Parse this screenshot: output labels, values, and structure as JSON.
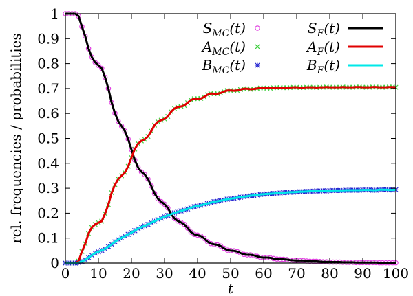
{
  "chart_data": {
    "type": "line",
    "xlabel": "t",
    "ylabel": "rel. frequencies / probabilities",
    "xlim": [
      0,
      100
    ],
    "ylim": [
      0,
      1
    ],
    "xticks": [
      "0",
      "10",
      "20",
      "30",
      "40",
      "50",
      "60",
      "70",
      "80",
      "90",
      "100"
    ],
    "yticks": [
      "0",
      "0.1",
      "0.2",
      "0.3",
      "0.4",
      "0.5",
      "0.6",
      "0.7",
      "0.8",
      "0.9",
      "1"
    ],
    "legend_position": "top-right",
    "x": [
      0,
      1,
      2,
      3,
      4,
      5,
      6,
      7,
      8,
      9,
      10,
      11,
      12,
      13,
      14,
      15,
      16,
      17,
      18,
      19,
      20,
      21,
      22,
      23,
      24,
      25,
      26,
      27,
      28,
      29,
      30,
      31,
      32,
      33,
      34,
      35,
      36,
      37,
      38,
      39,
      40,
      41,
      42,
      43,
      44,
      45,
      46,
      47,
      48,
      49,
      50,
      51,
      52,
      53,
      54,
      55,
      56,
      57,
      58,
      59,
      60,
      61,
      62,
      63,
      64,
      65,
      66,
      67,
      68,
      69,
      70,
      71,
      72,
      73,
      74,
      75,
      76,
      77,
      78,
      79,
      80,
      81,
      82,
      83,
      84,
      85,
      86,
      87,
      88,
      89,
      90,
      91,
      92,
      93,
      94,
      95,
      96,
      97,
      98,
      99,
      100
    ],
    "series": [
      {
        "name": "S_MC(t)",
        "display": [
          "S",
          "MC",
          "(t)"
        ],
        "kind": "markers",
        "marker": "circle",
        "color": "#e040e0",
        "values": [
          1.0,
          1.0,
          1.0,
          1.0,
          0.99,
          0.948,
          0.91,
          0.86,
          0.826,
          0.805,
          0.793,
          0.781,
          0.745,
          0.7,
          0.643,
          0.601,
          0.569,
          0.549,
          0.529,
          0.497,
          0.455,
          0.413,
          0.383,
          0.366,
          0.355,
          0.337,
          0.309,
          0.279,
          0.258,
          0.246,
          0.236,
          0.221,
          0.197,
          0.179,
          0.169,
          0.163,
          0.155,
          0.14,
          0.124,
          0.115,
          0.112,
          0.108,
          0.099,
          0.086,
          0.078,
          0.075,
          0.073,
          0.068,
          0.059,
          0.052,
          0.05,
          0.049,
          0.046,
          0.04,
          0.035,
          0.033,
          0.033,
          0.031,
          0.027,
          0.023,
          0.022,
          0.022,
          0.021,
          0.018,
          0.016,
          0.015,
          0.015,
          0.014,
          0.012,
          0.011,
          0.01,
          0.01,
          0.01,
          0.008,
          0.007,
          0.007,
          0.007,
          0.006,
          0.005,
          0.005,
          0.004,
          0.004,
          0.004,
          0.004,
          0.003,
          0.003,
          0.003,
          0.003,
          0.002,
          0.002,
          0.002,
          0.002,
          0.002,
          0.002,
          0.002,
          0.001,
          0.001,
          0.001,
          0.001,
          0.001,
          0.001
        ]
      },
      {
        "name": "A_MC(t)",
        "display": [
          "A",
          "MC",
          "(t)"
        ],
        "kind": "markers",
        "marker": "x",
        "color": "#40d040",
        "values": [
          0.0,
          0.0,
          0.0,
          0.0,
          0.008,
          0.046,
          0.077,
          0.118,
          0.143,
          0.155,
          0.162,
          0.168,
          0.198,
          0.234,
          0.282,
          0.314,
          0.337,
          0.35,
          0.363,
          0.388,
          0.423,
          0.457,
          0.479,
          0.49,
          0.496,
          0.508,
          0.529,
          0.553,
          0.567,
          0.573,
          0.578,
          0.588,
          0.607,
          0.62,
          0.626,
          0.628,
          0.632,
          0.643,
          0.654,
          0.659,
          0.659,
          0.66,
          0.666,
          0.675,
          0.68,
          0.679,
          0.679,
          0.682,
          0.688,
          0.692,
          0.692,
          0.691,
          0.692,
          0.696,
          0.699,
          0.699,
          0.697,
          0.698,
          0.7,
          0.702,
          0.702,
          0.701,
          0.701,
          0.703,
          0.704,
          0.704,
          0.703,
          0.703,
          0.704,
          0.705,
          0.705,
          0.704,
          0.704,
          0.705,
          0.705,
          0.705,
          0.704,
          0.705,
          0.705,
          0.706,
          0.705,
          0.705,
          0.705,
          0.705,
          0.706,
          0.705,
          0.705,
          0.705,
          0.706,
          0.706,
          0.705,
          0.705,
          0.705,
          0.706,
          0.706,
          0.705,
          0.705,
          0.705,
          0.706,
          0.706,
          0.705
        ]
      },
      {
        "name": "B_MC(t)",
        "display": [
          "B",
          "MC",
          "(t)"
        ],
        "kind": "markers",
        "marker": "asterisk",
        "color": "#2020d0",
        "values": [
          0.0,
          0.0,
          0.0,
          0.0,
          0.002,
          0.006,
          0.013,
          0.022,
          0.031,
          0.04,
          0.045,
          0.051,
          0.057,
          0.066,
          0.075,
          0.085,
          0.094,
          0.101,
          0.108,
          0.115,
          0.122,
          0.13,
          0.138,
          0.144,
          0.149,
          0.155,
          0.162,
          0.168,
          0.175,
          0.18,
          0.186,
          0.191,
          0.196,
          0.201,
          0.205,
          0.209,
          0.213,
          0.217,
          0.222,
          0.226,
          0.229,
          0.232,
          0.235,
          0.239,
          0.242,
          0.246,
          0.248,
          0.25,
          0.253,
          0.256,
          0.258,
          0.26,
          0.262,
          0.264,
          0.266,
          0.268,
          0.27,
          0.271,
          0.273,
          0.275,
          0.276,
          0.277,
          0.278,
          0.279,
          0.28,
          0.281,
          0.282,
          0.283,
          0.284,
          0.284,
          0.285,
          0.286,
          0.286,
          0.287,
          0.288,
          0.288,
          0.289,
          0.289,
          0.29,
          0.289,
          0.29,
          0.291,
          0.291,
          0.291,
          0.291,
          0.292,
          0.292,
          0.292,
          0.292,
          0.292,
          0.293,
          0.293,
          0.293,
          0.292,
          0.292,
          0.294,
          0.294,
          0.294,
          0.293,
          0.293,
          0.294
        ]
      },
      {
        "name": "S_F(t)",
        "display": [
          "S",
          "F",
          "(t)"
        ],
        "kind": "line",
        "color": "#000000",
        "values": [
          1.0,
          1.0,
          1.0,
          1.0,
          0.99,
          0.948,
          0.91,
          0.86,
          0.826,
          0.805,
          0.793,
          0.781,
          0.745,
          0.7,
          0.643,
          0.601,
          0.569,
          0.549,
          0.529,
          0.497,
          0.455,
          0.413,
          0.383,
          0.366,
          0.355,
          0.337,
          0.309,
          0.279,
          0.258,
          0.246,
          0.236,
          0.221,
          0.197,
          0.179,
          0.169,
          0.163,
          0.155,
          0.14,
          0.124,
          0.115,
          0.112,
          0.108,
          0.099,
          0.086,
          0.078,
          0.075,
          0.073,
          0.068,
          0.059,
          0.052,
          0.05,
          0.049,
          0.046,
          0.04,
          0.035,
          0.033,
          0.033,
          0.031,
          0.027,
          0.023,
          0.022,
          0.022,
          0.021,
          0.018,
          0.016,
          0.015,
          0.015,
          0.014,
          0.012,
          0.011,
          0.01,
          0.01,
          0.01,
          0.008,
          0.007,
          0.007,
          0.007,
          0.006,
          0.005,
          0.005,
          0.004,
          0.004,
          0.004,
          0.004,
          0.003,
          0.003,
          0.003,
          0.003,
          0.002,
          0.002,
          0.002,
          0.002,
          0.002,
          0.002,
          0.002,
          0.001,
          0.001,
          0.001,
          0.001,
          0.001,
          0.001
        ]
      },
      {
        "name": "A_F(t)",
        "display": [
          "A",
          "F",
          "(t)"
        ],
        "kind": "line",
        "color": "#e00000",
        "values": [
          0.0,
          0.0,
          0.0,
          0.0,
          0.008,
          0.046,
          0.077,
          0.118,
          0.143,
          0.155,
          0.162,
          0.168,
          0.198,
          0.234,
          0.282,
          0.314,
          0.337,
          0.35,
          0.363,
          0.388,
          0.423,
          0.457,
          0.479,
          0.49,
          0.496,
          0.508,
          0.529,
          0.553,
          0.567,
          0.573,
          0.578,
          0.588,
          0.607,
          0.62,
          0.626,
          0.628,
          0.632,
          0.643,
          0.654,
          0.659,
          0.659,
          0.66,
          0.666,
          0.675,
          0.68,
          0.679,
          0.679,
          0.682,
          0.688,
          0.692,
          0.692,
          0.691,
          0.692,
          0.696,
          0.699,
          0.699,
          0.697,
          0.698,
          0.7,
          0.702,
          0.702,
          0.701,
          0.701,
          0.703,
          0.704,
          0.704,
          0.703,
          0.703,
          0.704,
          0.705,
          0.705,
          0.704,
          0.704,
          0.705,
          0.705,
          0.705,
          0.704,
          0.705,
          0.705,
          0.706,
          0.705,
          0.705,
          0.705,
          0.705,
          0.706,
          0.705,
          0.705,
          0.705,
          0.706,
          0.706,
          0.705,
          0.705,
          0.705,
          0.706,
          0.706,
          0.705,
          0.705,
          0.705,
          0.706,
          0.706,
          0.705
        ]
      },
      {
        "name": "B_F(t)",
        "display": [
          "B",
          "F",
          "(t)"
        ],
        "kind": "line",
        "color": "#00e8e8",
        "values": [
          0.0,
          0.0,
          0.0,
          0.0,
          0.002,
          0.006,
          0.013,
          0.022,
          0.031,
          0.04,
          0.045,
          0.051,
          0.057,
          0.066,
          0.075,
          0.085,
          0.094,
          0.101,
          0.108,
          0.115,
          0.122,
          0.13,
          0.138,
          0.144,
          0.149,
          0.155,
          0.162,
          0.168,
          0.175,
          0.18,
          0.186,
          0.191,
          0.196,
          0.201,
          0.205,
          0.209,
          0.213,
          0.217,
          0.222,
          0.226,
          0.229,
          0.232,
          0.235,
          0.239,
          0.242,
          0.246,
          0.248,
          0.25,
          0.253,
          0.256,
          0.258,
          0.26,
          0.262,
          0.264,
          0.266,
          0.268,
          0.27,
          0.271,
          0.273,
          0.275,
          0.276,
          0.277,
          0.278,
          0.279,
          0.28,
          0.281,
          0.282,
          0.283,
          0.284,
          0.284,
          0.285,
          0.286,
          0.286,
          0.287,
          0.288,
          0.288,
          0.289,
          0.289,
          0.29,
          0.289,
          0.29,
          0.291,
          0.291,
          0.291,
          0.291,
          0.292,
          0.292,
          0.292,
          0.292,
          0.292,
          0.293,
          0.293,
          0.293,
          0.292,
          0.292,
          0.294,
          0.294,
          0.294,
          0.293,
          0.293,
          0.294
        ]
      }
    ]
  }
}
